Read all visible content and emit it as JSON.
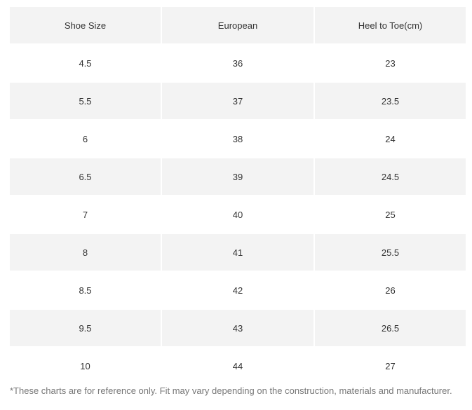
{
  "table": {
    "headers": [
      "Shoe Size",
      "European",
      "Heel to Toe(cm)"
    ],
    "rows": [
      [
        "4.5",
        "36",
        "23"
      ],
      [
        "5.5",
        "37",
        "23.5"
      ],
      [
        "6",
        "38",
        "24"
      ],
      [
        "6.5",
        "39",
        "24.5"
      ],
      [
        "7",
        "40",
        "25"
      ],
      [
        "8",
        "41",
        "25.5"
      ],
      [
        "8.5",
        "42",
        "26"
      ],
      [
        "9.5",
        "43",
        "26.5"
      ],
      [
        "10",
        "44",
        "27"
      ]
    ]
  },
  "footnote": "*These charts are for reference only. Fit may vary depending on the construction, materials and manufacturer.",
  "colors": {
    "shaded_row": "#f3f3f3",
    "text": "#333333",
    "footnote_text": "#777777"
  }
}
